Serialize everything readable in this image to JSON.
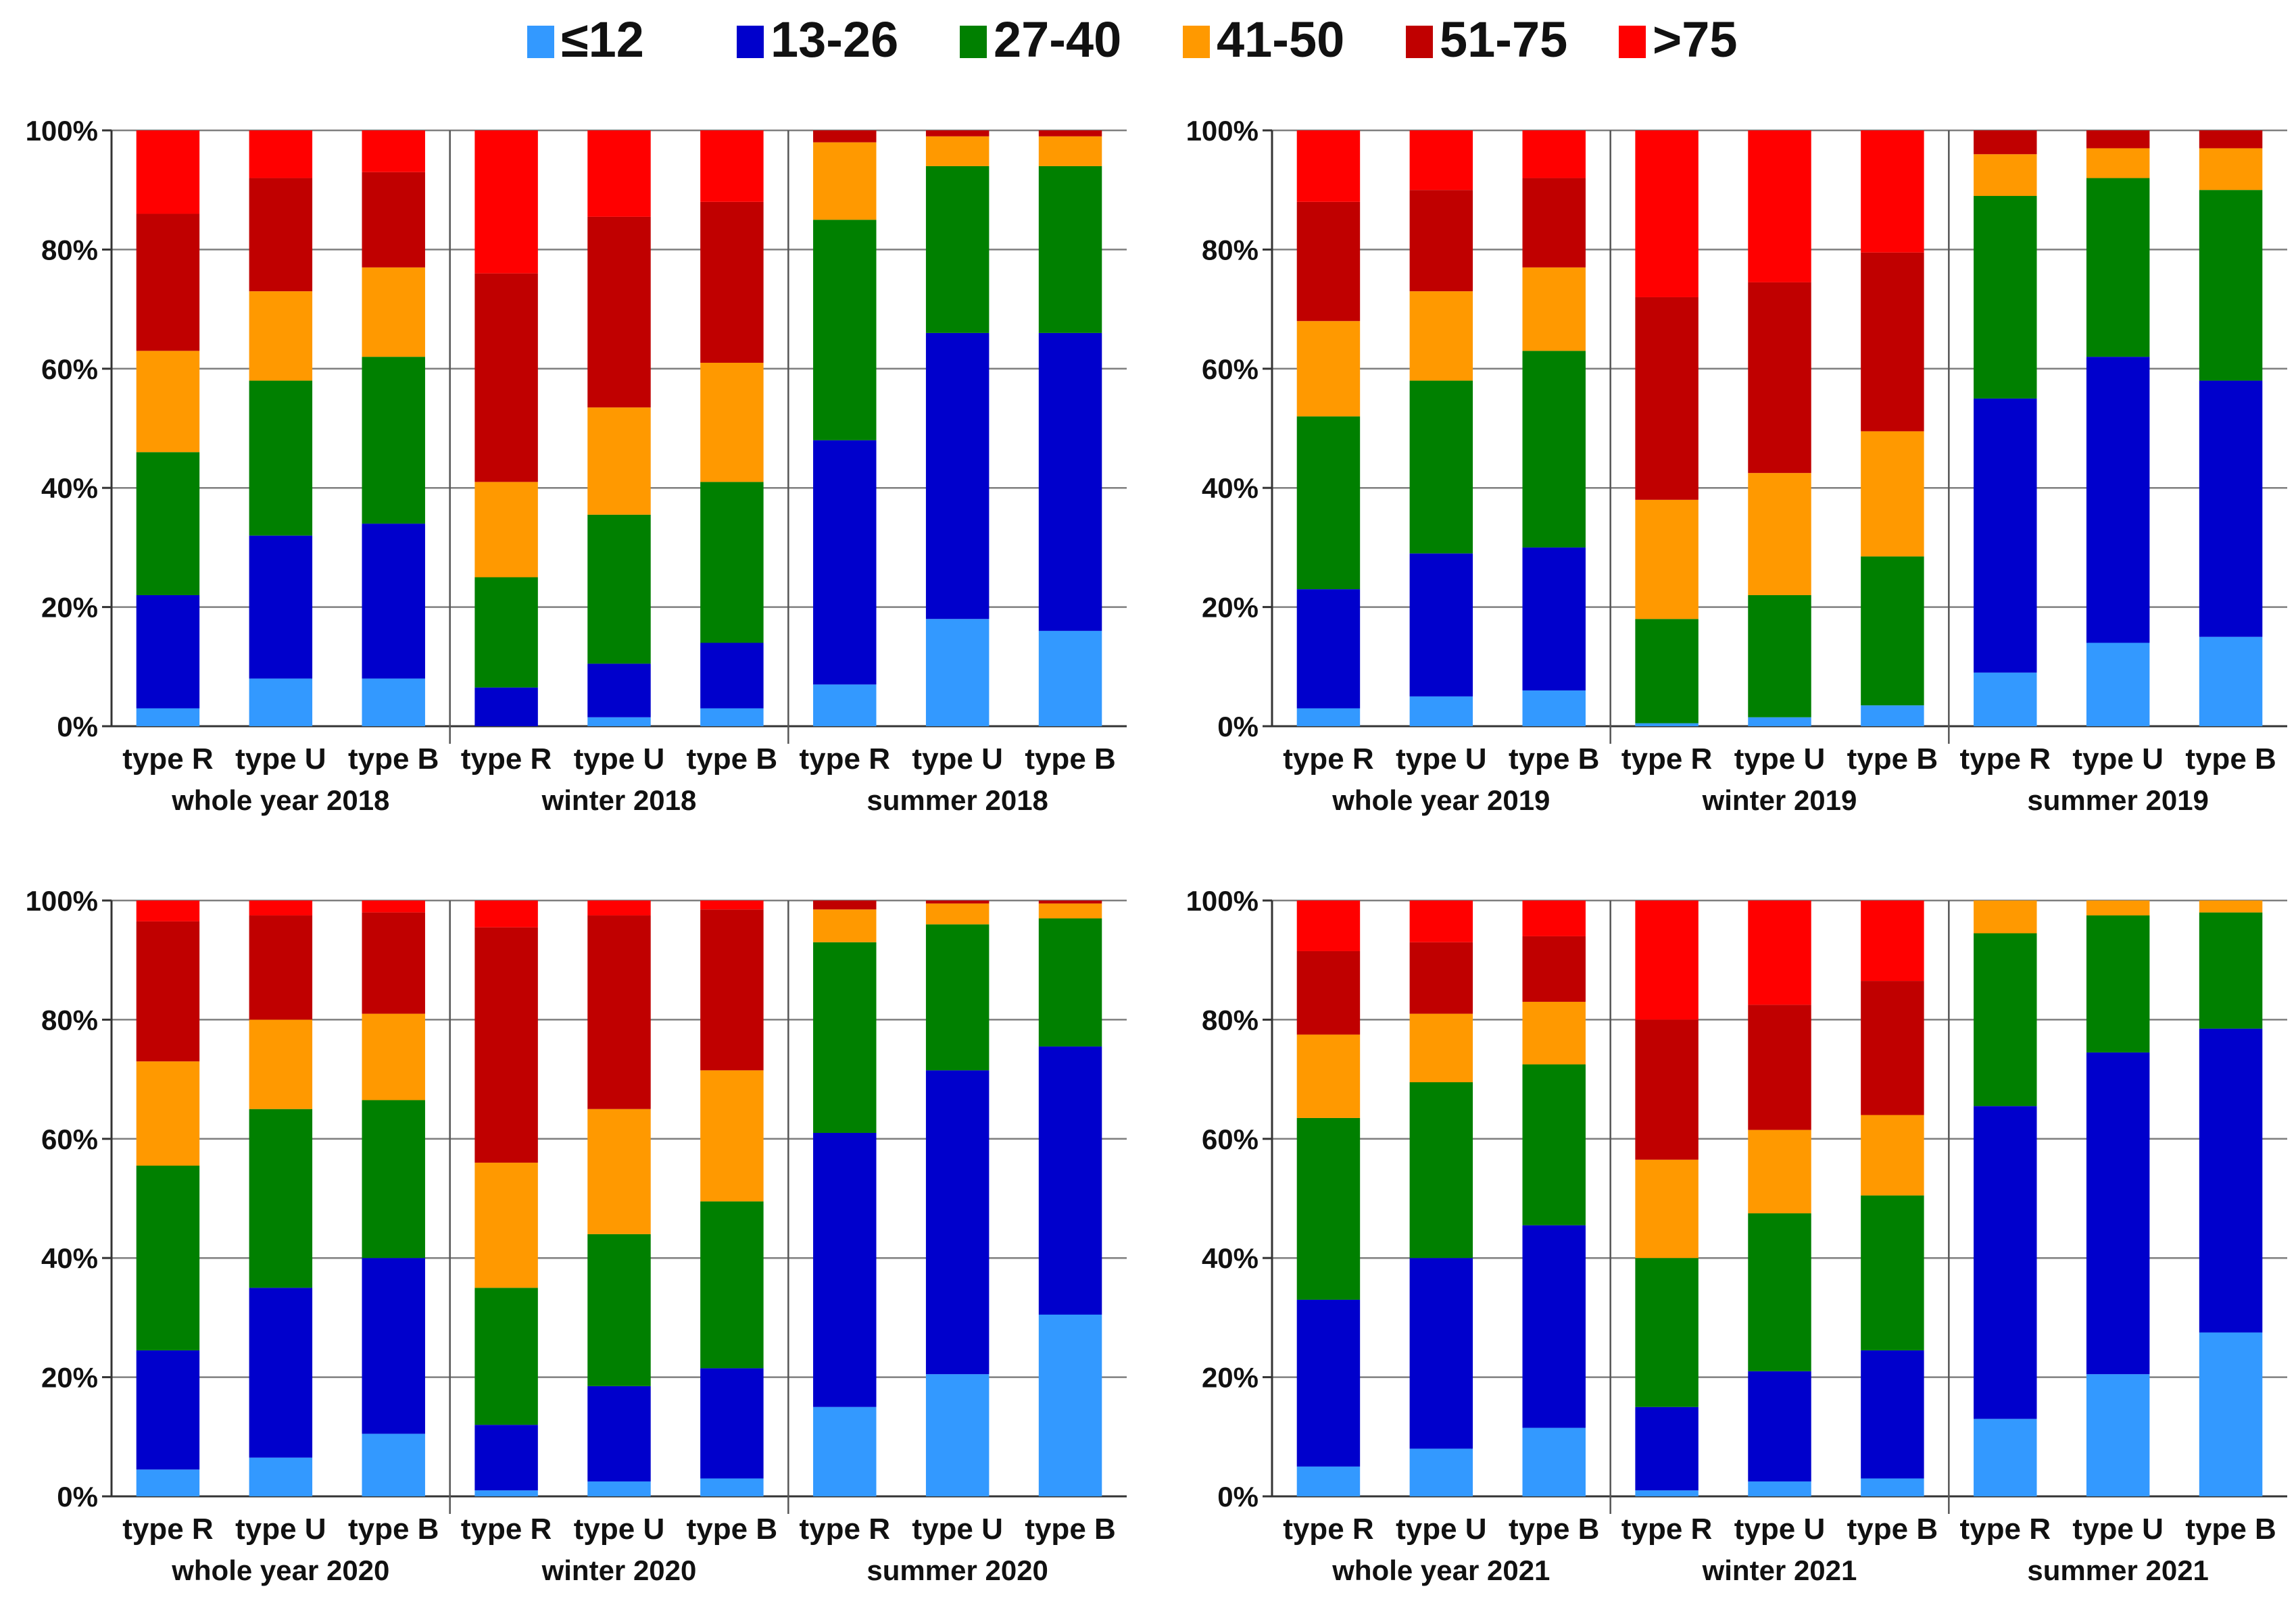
{
  "legend": [
    {
      "label": "≤12",
      "color": "#3399FF"
    },
    {
      "label": "13-26",
      "color": "#0000CC"
    },
    {
      "label": "27-40",
      "color": "#008000"
    },
    {
      "label": "41-50",
      "color": "#FF9900"
    },
    {
      "label": "51-75",
      "color": "#C00000"
    },
    {
      "label": ">75",
      "color": "#FF0000"
    }
  ],
  "y_ticks": [
    "0%",
    "20%",
    "40%",
    "60%",
    "80%",
    "100%"
  ],
  "chart_data": [
    {
      "type": "bar",
      "stacked": true,
      "ylim": [
        0,
        100
      ],
      "categories": [
        "type R",
        "type U",
        "type B"
      ],
      "groups": [
        {
          "label": "whole year 2018",
          "values": [
            [
              3,
              19,
              24,
              17,
              23,
              14
            ],
            [
              8,
              24,
              26,
              15,
              19,
              8
            ],
            [
              8,
              26,
              28,
              15,
              16,
              7
            ]
          ]
        },
        {
          "label": "winter 2018",
          "values": [
            [
              0,
              6.5,
              18.5,
              16,
              35,
              24
            ],
            [
              1.5,
              9,
              25,
              18,
              32,
              14.5
            ],
            [
              3,
              11,
              27,
              20,
              27,
              12
            ]
          ]
        },
        {
          "label": "summer 2018",
          "values": [
            [
              7,
              41,
              37,
              13,
              2,
              0
            ],
            [
              18,
              48,
              28,
              5,
              1,
              0
            ],
            [
              16,
              50,
              28,
              5,
              1,
              0
            ]
          ]
        }
      ]
    },
    {
      "type": "bar",
      "stacked": true,
      "ylim": [
        0,
        100
      ],
      "categories": [
        "type R",
        "type U",
        "type B"
      ],
      "groups": [
        {
          "label": "whole year 2019",
          "values": [
            [
              3,
              20,
              29,
              16,
              20,
              12
            ],
            [
              5,
              24,
              29,
              15,
              17,
              10
            ],
            [
              6,
              24,
              33,
              14,
              15,
              8
            ]
          ]
        },
        {
          "label": "winter 2019",
          "values": [
            [
              0.5,
              0,
              17.5,
              20,
              34,
              28
            ],
            [
              1.5,
              0,
              20.5,
              20.5,
              32,
              25.5
            ],
            [
              3.5,
              0,
              25,
              21,
              30,
              20.5
            ]
          ]
        },
        {
          "label": "summer 2019",
          "values": [
            [
              9,
              46,
              34,
              7,
              4,
              0
            ],
            [
              14,
              48,
              30,
              5,
              3,
              0
            ],
            [
              15,
              43,
              32,
              7,
              3,
              0
            ]
          ]
        }
      ]
    },
    {
      "type": "bar",
      "stacked": true,
      "ylim": [
        0,
        100
      ],
      "categories": [
        "type R",
        "type U",
        "type B"
      ],
      "groups": [
        {
          "label": "whole year 2020",
          "values": [
            [
              4.5,
              20,
              31,
              17.5,
              23.5,
              3.5
            ],
            [
              6.5,
              28.5,
              30,
              15,
              17.5,
              2.5
            ],
            [
              10.5,
              29.5,
              26.5,
              14.5,
              17,
              2
            ]
          ]
        },
        {
          "label": "winter 2020",
          "values": [
            [
              1,
              11,
              23,
              21,
              39.5,
              4.5
            ],
            [
              2.5,
              16,
              25.5,
              21,
              32.5,
              2.5
            ],
            [
              3,
              18.5,
              28,
              22,
              27,
              1.5
            ]
          ]
        },
        {
          "label": "summer 2020",
          "values": [
            [
              15,
              46,
              32,
              5.5,
              1.5,
              0
            ],
            [
              20.5,
              51,
              24.5,
              3.5,
              0.5,
              0
            ],
            [
              30.5,
              45,
              21.5,
              2.5,
              0.5,
              0
            ]
          ]
        }
      ]
    },
    {
      "type": "bar",
      "stacked": true,
      "ylim": [
        0,
        100
      ],
      "categories": [
        "type R",
        "type U",
        "type B"
      ],
      "groups": [
        {
          "label": "whole year 2021",
          "values": [
            [
              5,
              28,
              30.5,
              14,
              14,
              8.5
            ],
            [
              8,
              32,
              29.5,
              11.5,
              12,
              7
            ],
            [
              11.5,
              34,
              27,
              10.5,
              11,
              6
            ]
          ]
        },
        {
          "label": "winter 2021",
          "values": [
            [
              1,
              14,
              25,
              16.5,
              23.5,
              20
            ],
            [
              2.5,
              18.5,
              26.5,
              14,
              21,
              17.5
            ],
            [
              3,
              21.5,
              26,
              13.5,
              22.5,
              13.5
            ]
          ]
        },
        {
          "label": "summer 2021",
          "values": [
            [
              13,
              52.5,
              29,
              5.5,
              0,
              0
            ],
            [
              20.5,
              54,
              23,
              2.5,
              0,
              0
            ],
            [
              27.5,
              51,
              19.5,
              2,
              0,
              0
            ]
          ]
        }
      ]
    }
  ]
}
